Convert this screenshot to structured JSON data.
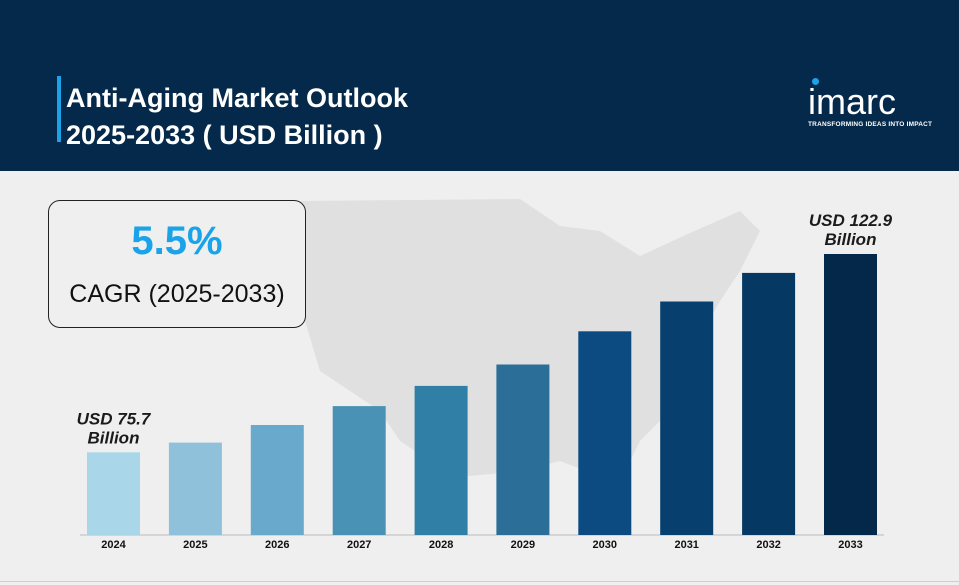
{
  "header": {
    "title_line1": "Anti-Aging Market Outlook",
    "title_line2": "2025-2033 ( USD Billion )"
  },
  "logo": {
    "word": "imarc",
    "tagline": "TRANSFORMING IDEAS INTO IMPACT"
  },
  "cagr": {
    "value": "5.5%",
    "label": "CAGR (2025-2033)"
  },
  "colors": {
    "header_bg": "#05294a",
    "accent": "#1aa3e8",
    "bars": [
      "#a9d6e9",
      "#8fc2da",
      "#69a9cb",
      "#4a92b5",
      "#2f7fa6",
      "#2b6f98",
      "#0b4b82",
      "#07406f",
      "#053863",
      "#04284a"
    ]
  },
  "chart_data": {
    "type": "bar",
    "title": "Anti-Aging Market Outlook 2025-2033 ( USD Billion )",
    "categories": [
      "2024",
      "2025",
      "2026",
      "2027",
      "2028",
      "2029",
      "2030",
      "2031",
      "2032",
      "2033"
    ],
    "values": [
      75.7,
      78.0,
      82.2,
      86.7,
      91.5,
      96.6,
      104.5,
      111.6,
      118.4,
      122.9
    ],
    "annotations": [
      {
        "category": "2024",
        "line1": "USD 75.7",
        "line2": "Billion"
      },
      {
        "category": "2033",
        "line1": "USD 122.9",
        "line2": "Billion"
      }
    ],
    "xlabel": "",
    "ylabel": "",
    "ylim": [
      56,
      124
    ],
    "grid": false,
    "legend": "none"
  }
}
